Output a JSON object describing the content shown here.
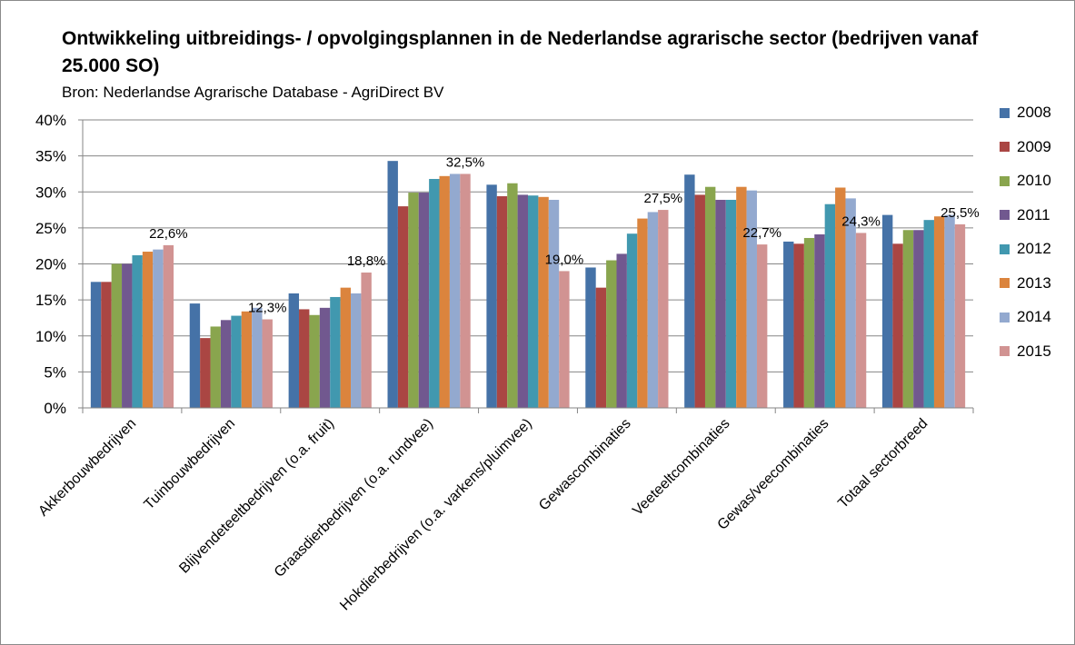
{
  "chart_data": {
    "type": "bar",
    "title": "Ontwikkeling  uitbreidings- / opvolgingsplannen  in de Nederlandse agrarische sector (bedrijven vanaf 25.000 SO)",
    "subtitle": "Bron: Nederlandse Agrarische Database - AgriDirect BV",
    "xlabel": "",
    "ylabel": "",
    "ylim": [
      0,
      40
    ],
    "y_ticks": [
      "0%",
      "5%",
      "10%",
      "15%",
      "20%",
      "25%",
      "30%",
      "35%",
      "40%"
    ],
    "grid": "horizontal",
    "legend_position": "right",
    "categories": [
      "Akkerbouwbedrijven",
      "Tuinbouwbedrijven",
      "Blijvendeteeltbedrijven (o.a. fruit)",
      "Graasdierbedrijven (o.a. rundvee)",
      "Hokdierbedrijven (o.a. varkens/pluimvee)",
      "Gewascombinaties",
      "Veeteeltcombinaties",
      "Gewas/veecombinaties",
      "Totaal sectorbreed"
    ],
    "series": [
      {
        "name": "2008",
        "color": "#4572a7",
        "values": [
          17.5,
          14.5,
          15.9,
          34.3,
          31.0,
          19.5,
          32.4,
          23.1,
          26.8
        ]
      },
      {
        "name": "2009",
        "color": "#aa4643",
        "values": [
          17.5,
          9.7,
          13.7,
          28.0,
          29.4,
          16.7,
          29.6,
          22.8,
          22.8
        ]
      },
      {
        "name": "2010",
        "color": "#89a54e",
        "values": [
          20.0,
          11.3,
          12.9,
          29.9,
          31.2,
          20.5,
          30.7,
          23.6,
          24.7
        ]
      },
      {
        "name": "2011",
        "color": "#71588f",
        "values": [
          20.0,
          12.2,
          13.9,
          29.9,
          29.6,
          21.4,
          28.9,
          24.1,
          24.7
        ]
      },
      {
        "name": "2012",
        "color": "#4198af",
        "values": [
          21.2,
          12.8,
          15.4,
          31.8,
          29.5,
          24.2,
          28.9,
          28.3,
          26.1
        ]
      },
      {
        "name": "2013",
        "color": "#db843d",
        "values": [
          21.7,
          13.4,
          16.7,
          32.2,
          29.3,
          26.3,
          30.7,
          30.6,
          26.6
        ]
      },
      {
        "name": "2014",
        "color": "#93a9cf",
        "values": [
          22.0,
          13.9,
          15.9,
          32.5,
          28.9,
          27.2,
          30.2,
          29.1,
          26.8
        ]
      },
      {
        "name": "2015",
        "color": "#d19392",
        "values": [
          22.6,
          12.3,
          18.8,
          32.5,
          19.0,
          27.5,
          22.7,
          24.3,
          25.5
        ]
      }
    ],
    "data_labels": [
      "22,6%",
      "12,3%",
      "18,8%",
      "32,5%",
      "19,0%",
      "27,5%",
      "22,7%",
      "24,3%",
      "25,5%"
    ]
  }
}
